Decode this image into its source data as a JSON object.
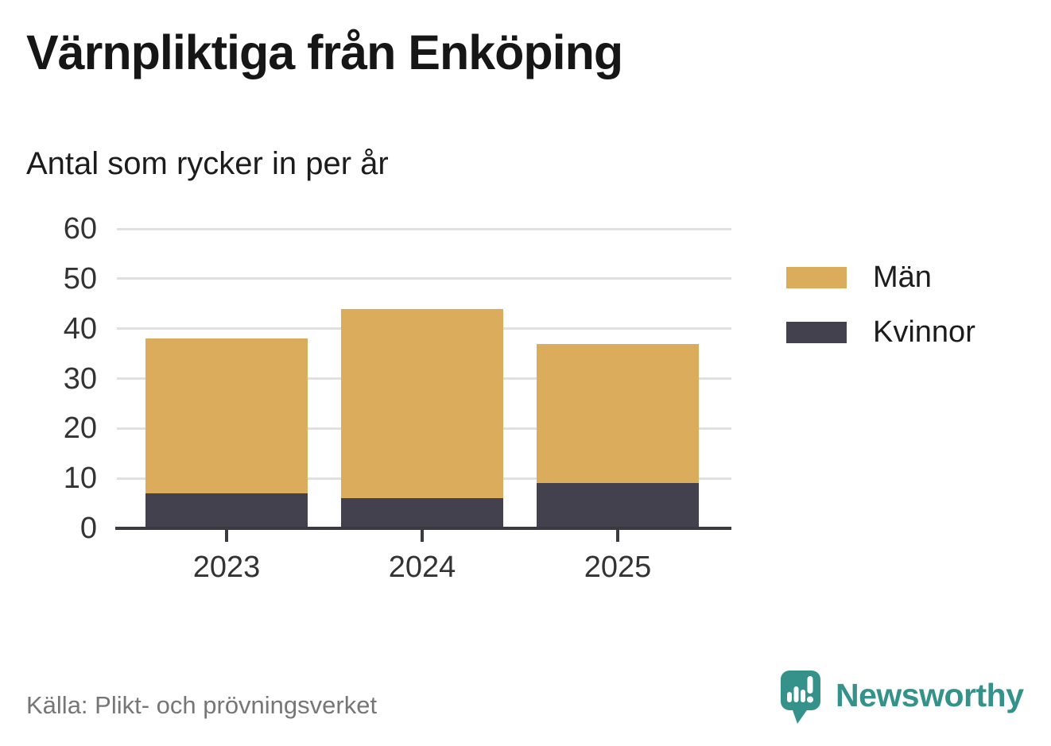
{
  "chart_data": {
    "type": "bar",
    "stacked": true,
    "title": "Värnpliktiga från Enköping",
    "subtitle": "Antal som rycker in per år",
    "categories": [
      "2023",
      "2024",
      "2025"
    ],
    "series": [
      {
        "name": "Män",
        "color": "#DAAC5C",
        "values": [
          31,
          38,
          28
        ]
      },
      {
        "name": "Kvinnor",
        "color": "#44414E",
        "values": [
          7,
          6,
          9
        ]
      }
    ],
    "stacked_totals": [
      38,
      44,
      37
    ],
    "ylim": [
      0,
      60
    ],
    "yticks": [
      0,
      10,
      20,
      30,
      40,
      50,
      60
    ],
    "grid": true,
    "legend_position": "right",
    "grid_color": "#E0E0E0",
    "axis_color": "#3A3A40",
    "tick_label_color": "#333333"
  },
  "footer": {
    "source": "Källa: Plikt- och prövningsverket",
    "brand": "Newsworthy",
    "brand_color": "#35928B"
  }
}
